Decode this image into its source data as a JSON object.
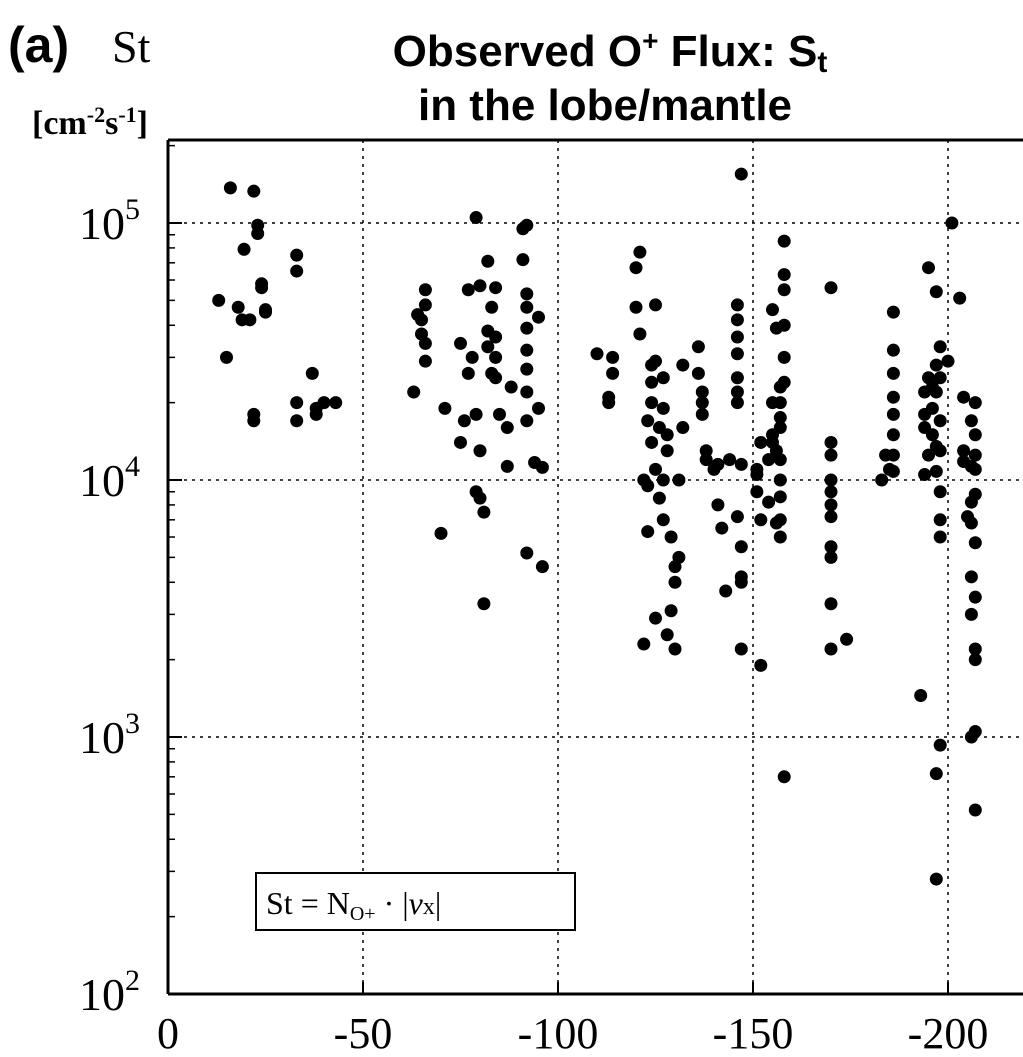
{
  "chart_data": {
    "type": "scatter",
    "panel_label": "(a)",
    "ylabel_symbol": "St",
    "yunit_base": "[cm",
    "yunit_exp1": "-2",
    "yunit_mid": "s",
    "yunit_exp2": "-1",
    "yunit_close": "]",
    "title_part1": "Observed O",
    "title_sup": "+",
    "title_part2": " Flux: S",
    "title_sub": "t",
    "title_line2": "in the lobe/mantle",
    "y_log_scale": true,
    "ylim": [
      100,
      200000
    ],
    "xlim": [
      0,
      -210
    ],
    "x_ticks": [
      0,
      -50,
      -100,
      -150,
      -200
    ],
    "x_tick_labels": [
      "0",
      "-50",
      "-100",
      "-150",
      "-200"
    ],
    "y_ticks": [
      100,
      1000,
      10000,
      100000
    ],
    "y_tick_labels": [
      {
        "base": "10",
        "exp": "2"
      },
      {
        "base": "10",
        "exp": "3"
      },
      {
        "base": "10",
        "exp": "4"
      },
      {
        "base": "10",
        "exp": "5"
      }
    ],
    "grid": true,
    "marker_color": "#000000",
    "annotation": {
      "lhs": "St = N",
      "sub": "O+",
      "dot": " · |",
      "v": "v",
      "vsub": "x",
      "close": "|"
    },
    "points": [
      [
        -13,
        50000
      ],
      [
        -15,
        30000
      ],
      [
        -16,
        137000
      ],
      [
        -18,
        47000
      ],
      [
        -19,
        42000
      ],
      [
        -19.5,
        79000
      ],
      [
        -21,
        42000
      ],
      [
        -22,
        18000
      ],
      [
        -22,
        17000
      ],
      [
        -22,
        133000
      ],
      [
        -23,
        98000
      ],
      [
        -23,
        91000
      ],
      [
        -24,
        58000
      ],
      [
        -24,
        56000
      ],
      [
        -25,
        46000
      ],
      [
        -25,
        45000
      ],
      [
        -33,
        75000
      ],
      [
        -33,
        65000
      ],
      [
        -33,
        20000
      ],
      [
        -33,
        17000
      ],
      [
        -37,
        26000
      ],
      [
        -38,
        19000
      ],
      [
        -38,
        18000
      ],
      [
        -40,
        20000
      ],
      [
        -43,
        20000
      ],
      [
        -63,
        22000
      ],
      [
        -64,
        44000
      ],
      [
        -65,
        42000
      ],
      [
        -65,
        37000
      ],
      [
        -66,
        34000
      ],
      [
        -66,
        29000
      ],
      [
        -66,
        55000
      ],
      [
        -66,
        48000
      ],
      [
        -70,
        6200
      ],
      [
        -71,
        19000
      ],
      [
        -75,
        14000
      ],
      [
        -75,
        34000
      ],
      [
        -76,
        17000
      ],
      [
        -77,
        26000
      ],
      [
        -77,
        55000
      ],
      [
        -78,
        30000
      ],
      [
        -79,
        18000
      ],
      [
        -79,
        9000
      ],
      [
        -79,
        105000
      ],
      [
        -80,
        8500
      ],
      [
        -80,
        57000
      ],
      [
        -80,
        13000
      ],
      [
        -81,
        7500
      ],
      [
        -81,
        3300
      ],
      [
        -82,
        33000
      ],
      [
        -82,
        38000
      ],
      [
        -82,
        71000
      ],
      [
        -83,
        47000
      ],
      [
        -83,
        26000
      ],
      [
        -84,
        30000
      ],
      [
        -84,
        36000
      ],
      [
        -84,
        56000
      ],
      [
        -84,
        25000
      ],
      [
        -85,
        18000
      ],
      [
        -87,
        11300
      ],
      [
        -87,
        16000
      ],
      [
        -88,
        23000
      ],
      [
        -91,
        95000
      ],
      [
        -91,
        72000
      ],
      [
        -92,
        98000
      ],
      [
        -92,
        53000
      ],
      [
        -92,
        47000
      ],
      [
        -92,
        39000
      ],
      [
        -92,
        32000
      ],
      [
        -92,
        27000
      ],
      [
        -92,
        22000
      ],
      [
        -92,
        17000
      ],
      [
        -92,
        5200
      ],
      [
        -94,
        11700
      ],
      [
        -95,
        19000
      ],
      [
        -95,
        43000
      ],
      [
        -96,
        4600
      ],
      [
        -96,
        11200
      ],
      [
        -110,
        31000
      ],
      [
        -113,
        20000
      ],
      [
        -113,
        21000
      ],
      [
        -114,
        26000
      ],
      [
        -114,
        30000
      ],
      [
        -120,
        67000
      ],
      [
        -120,
        47000
      ],
      [
        -121,
        77000
      ],
      [
        -121,
        37000
      ],
      [
        -122,
        2300
      ],
      [
        -122,
        10000
      ],
      [
        -123,
        17000
      ],
      [
        -123,
        9500
      ],
      [
        -123,
        6300
      ],
      [
        -124,
        28000
      ],
      [
        -124,
        24000
      ],
      [
        -124,
        20000
      ],
      [
        -124,
        14000
      ],
      [
        -125,
        48000
      ],
      [
        -125,
        29000
      ],
      [
        -125,
        11000
      ],
      [
        -125,
        2900
      ],
      [
        -126,
        16000
      ],
      [
        -126,
        8500
      ],
      [
        -127,
        25000
      ],
      [
        -127,
        19000
      ],
      [
        -127,
        10000
      ],
      [
        -127,
        7000
      ],
      [
        -128,
        15000
      ],
      [
        -128,
        13000
      ],
      [
        -128,
        2500
      ],
      [
        -129,
        6000
      ],
      [
        -129,
        3100
      ],
      [
        -130,
        4600
      ],
      [
        -130,
        4000
      ],
      [
        -130,
        2200
      ],
      [
        -131,
        10000
      ],
      [
        -131,
        5000
      ],
      [
        -132,
        16000
      ],
      [
        -132,
        28000
      ],
      [
        -136,
        33000
      ],
      [
        -136,
        26000
      ],
      [
        -137,
        18000
      ],
      [
        -137,
        22000
      ],
      [
        -137,
        20000
      ],
      [
        -138,
        12000
      ],
      [
        -138,
        13000
      ],
      [
        -140,
        11000
      ],
      [
        -141,
        11500
      ],
      [
        -141,
        8000
      ],
      [
        -142,
        6500
      ],
      [
        -143,
        3700
      ],
      [
        -144,
        12000
      ],
      [
        -146,
        22000
      ],
      [
        -146,
        42000
      ],
      [
        -146,
        36000
      ],
      [
        -146,
        48000
      ],
      [
        -146,
        31000
      ],
      [
        -146,
        25000
      ],
      [
        -146,
        20000
      ],
      [
        -146,
        7200
      ],
      [
        -147,
        5500
      ],
      [
        -147,
        4200
      ],
      [
        -147,
        4000
      ],
      [
        -147,
        2200
      ],
      [
        -147,
        155000
      ],
      [
        -147,
        11500
      ],
      [
        -151,
        11000
      ],
      [
        -151,
        10500
      ],
      [
        -151,
        9000
      ],
      [
        -152,
        14000
      ],
      [
        -152,
        7000
      ],
      [
        -152,
        1900
      ],
      [
        -154,
        8200
      ],
      [
        -154,
        12000
      ],
      [
        -155,
        20000
      ],
      [
        -155,
        15000
      ],
      [
        -155,
        14000
      ],
      [
        -155,
        46000
      ],
      [
        -156,
        13000
      ],
      [
        -156,
        6800
      ],
      [
        -156,
        39000
      ],
      [
        -157,
        23000
      ],
      [
        -157,
        20000
      ],
      [
        -157,
        17500
      ],
      [
        -157,
        16000
      ],
      [
        -157,
        12000
      ],
      [
        -157,
        10000
      ],
      [
        -157,
        8600
      ],
      [
        -157,
        7000
      ],
      [
        -157,
        6000
      ],
      [
        -158,
        85000
      ],
      [
        -158,
        63000
      ],
      [
        -158,
        55000
      ],
      [
        -158,
        40000
      ],
      [
        -158,
        30000
      ],
      [
        -158,
        24000
      ],
      [
        -158,
        700
      ],
      [
        -170,
        56000
      ],
      [
        -170,
        14000
      ],
      [
        -170,
        12500
      ],
      [
        -170,
        10000
      ],
      [
        -170,
        9000
      ],
      [
        -170,
        8000
      ],
      [
        -170,
        7200
      ],
      [
        -170,
        5500
      ],
      [
        -170,
        5000
      ],
      [
        -170,
        3300
      ],
      [
        -170,
        2200
      ],
      [
        -174,
        2400
      ],
      [
        -183,
        10000
      ],
      [
        -184,
        12500
      ],
      [
        -185,
        11000
      ],
      [
        -186,
        45000
      ],
      [
        -186,
        32000
      ],
      [
        -186,
        26000
      ],
      [
        -186,
        21000
      ],
      [
        -186,
        18000
      ],
      [
        -186,
        15000
      ],
      [
        -186,
        12500
      ],
      [
        -186,
        10800
      ],
      [
        -193,
        1450
      ],
      [
        -194,
        16000
      ],
      [
        -194,
        18000
      ],
      [
        -194,
        22000
      ],
      [
        -194,
        10500
      ],
      [
        -195,
        67000
      ],
      [
        -195,
        25000
      ],
      [
        -195,
        12500
      ],
      [
        -196,
        23000
      ],
      [
        -196,
        19000
      ],
      [
        -196,
        15000
      ],
      [
        -197,
        28000
      ],
      [
        -197,
        22000
      ],
      [
        -197,
        13500
      ],
      [
        -197,
        10800
      ],
      [
        -197,
        54000
      ],
      [
        -197,
        280
      ],
      [
        -197,
        720
      ],
      [
        -198,
        33000
      ],
      [
        -198,
        25000
      ],
      [
        -198,
        17000
      ],
      [
        -198,
        13000
      ],
      [
        -198,
        9000
      ],
      [
        -198,
        7000
      ],
      [
        -198,
        6000
      ],
      [
        -198,
        930
      ],
      [
        -200,
        29000
      ],
      [
        -201,
        100000
      ],
      [
        -203,
        51000
      ],
      [
        -204,
        21000
      ],
      [
        -204,
        13000
      ],
      [
        -204,
        11800
      ],
      [
        -205,
        7200
      ],
      [
        -206,
        17000
      ],
      [
        -206,
        11300
      ],
      [
        -206,
        8200
      ],
      [
        -206,
        6800
      ],
      [
        -206,
        4200
      ],
      [
        -206,
        3000
      ],
      [
        -206,
        1000
      ],
      [
        -207,
        20000
      ],
      [
        -207,
        15000
      ],
      [
        -207,
        12500
      ],
      [
        -207,
        11000
      ],
      [
        -207,
        8800
      ],
      [
        -207,
        5700
      ],
      [
        -207,
        3500
      ],
      [
        -207,
        2200
      ],
      [
        -207,
        2000
      ],
      [
        -207,
        1050
      ],
      [
        -207,
        520
      ]
    ]
  }
}
